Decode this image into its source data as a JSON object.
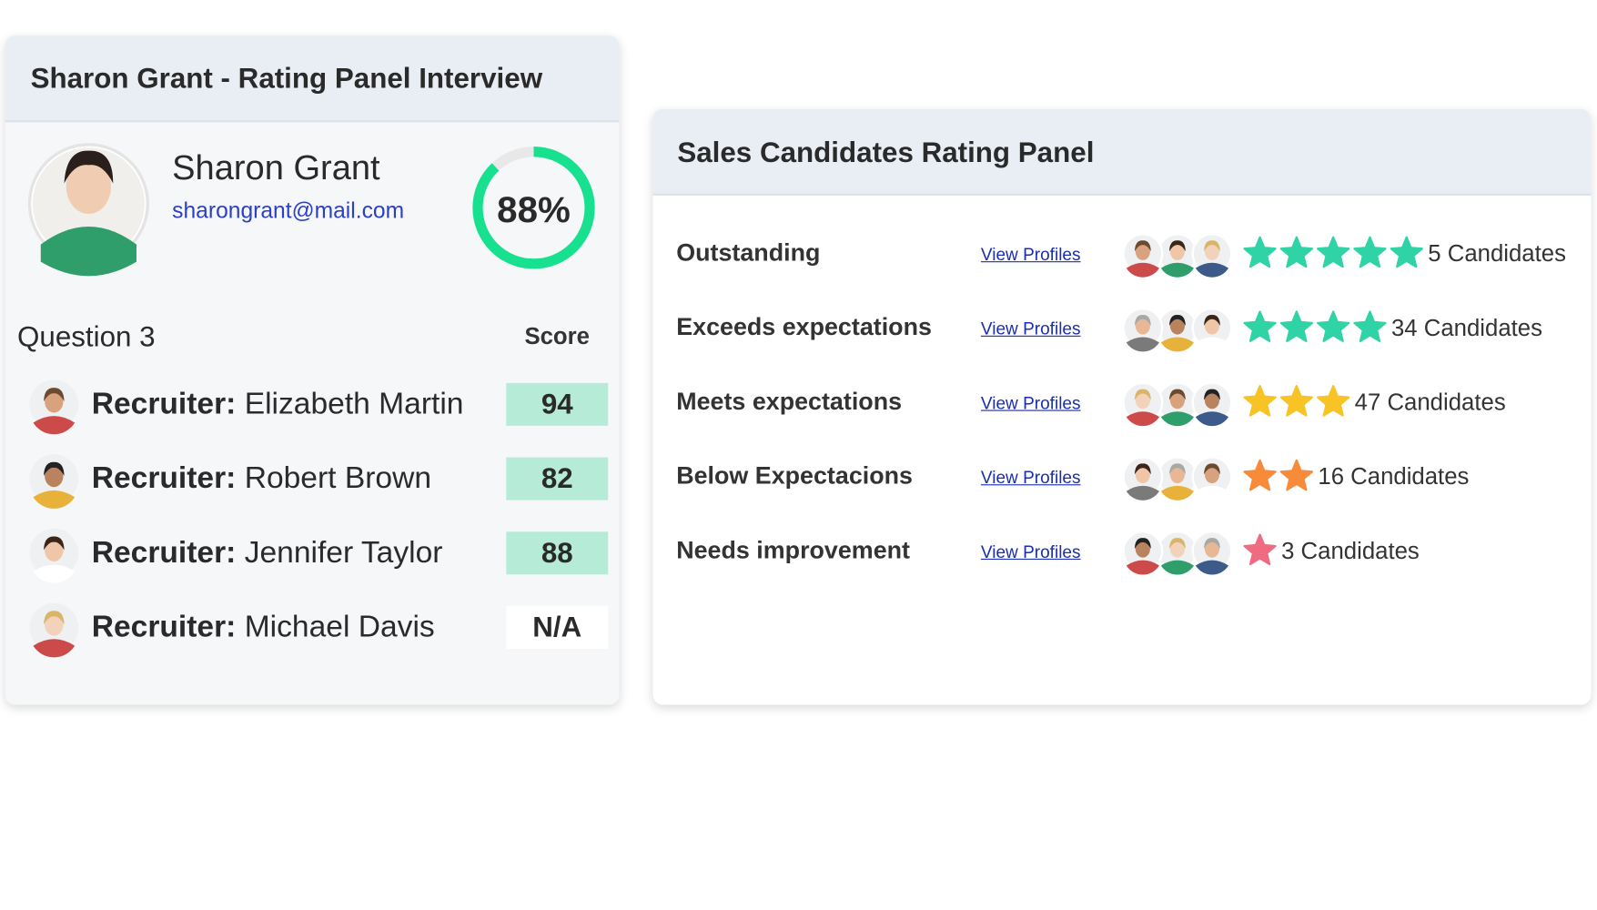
{
  "interview_panel": {
    "title": "Sharon Grant - Rating Panel Interview",
    "candidate": {
      "name": "Sharon Grant",
      "email": "sharongrant@mail.com",
      "score": {
        "value": 88,
        "label": "88%"
      }
    },
    "question": "Question 3",
    "score_header": "Score",
    "rows": [
      {
        "role": "Recruiter:",
        "name": "Elizabeth Martin",
        "score": 94
      },
      {
        "role": "Recruiter:",
        "name": "Robert Brown",
        "score": 82
      },
      {
        "role": "Recruiter:",
        "name": "Jennifer Taylor",
        "score": 88
      },
      {
        "role": "Recruiter:",
        "name": "Michael Davis",
        "score": "N/A"
      }
    ]
  },
  "rating_panel": {
    "title": "Sales Candidates Rating Panel",
    "rows": [
      {
        "label": "Outstanding",
        "link": "View Profiles",
        "stars": 5,
        "color": "#2fd3a6",
        "candidates": "5 Candidates"
      },
      {
        "label": "Exceeds expectations",
        "link": "View Profiles",
        "stars": 4,
        "color": "#2fd3a6",
        "candidates": "34 Candidates"
      },
      {
        "label": "Meets expectations",
        "link": "View Profiles",
        "stars": 3,
        "color": "#f7c325",
        "candidates": "47 Candidates"
      },
      {
        "label": "Below Expectacions",
        "link": "View Profiles",
        "stars": 2,
        "color": "#f78b3a",
        "candidates": "16 Candidates"
      },
      {
        "label": "Needs improvement",
        "link": "View Profiles",
        "stars": 1,
        "color": "#f06a80",
        "candidates": "3 Candidates"
      }
    ]
  }
}
